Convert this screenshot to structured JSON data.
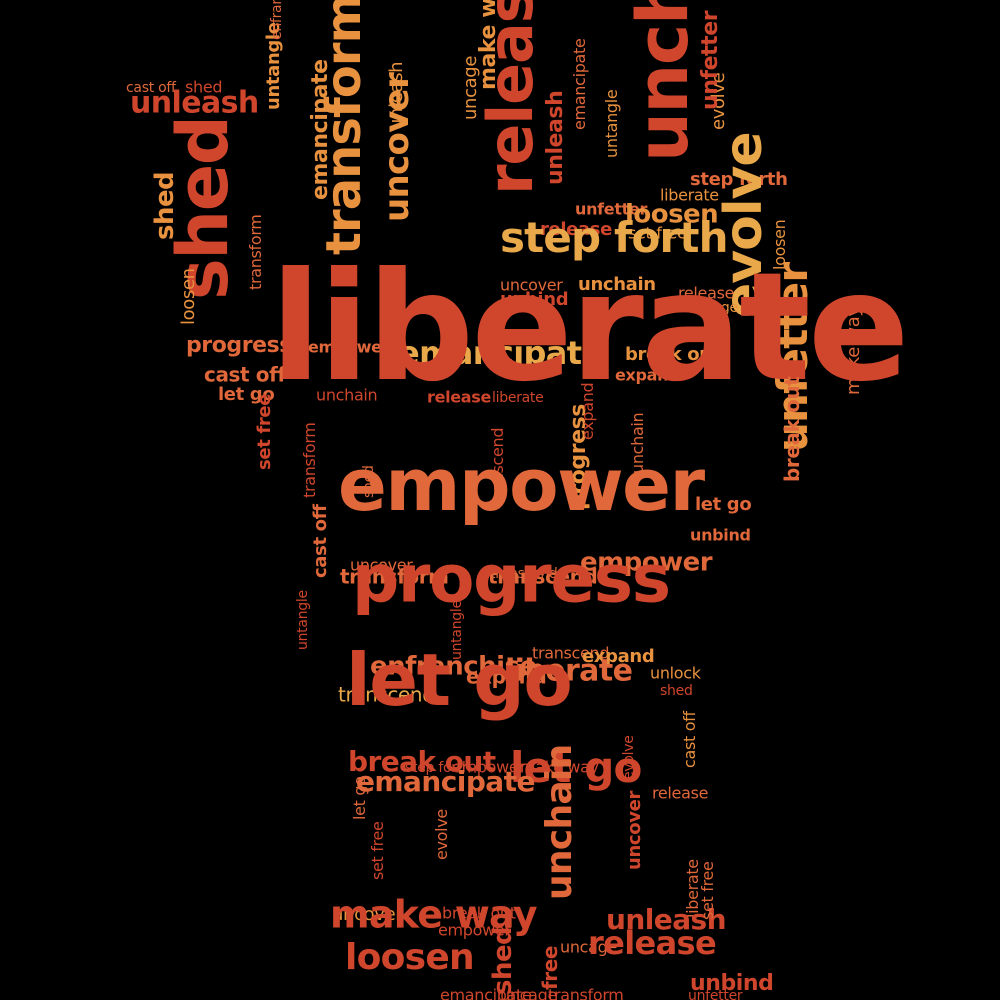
{
  "palette": {
    "background": "#000000",
    "red": "#d0462c",
    "orange": "#e0683a",
    "amber": "#e8923f",
    "gold": "#e9a94a"
  },
  "words": [
    {
      "text": "shed",
      "color": "red"
    },
    {
      "text": "unleash",
      "color": "red"
    },
    {
      "text": "cast off",
      "color": "orange"
    },
    {
      "text": "shed",
      "color": "red"
    },
    {
      "text": "shed",
      "color": "amber"
    },
    {
      "text": "loosen",
      "color": "amber"
    },
    {
      "text": "transform",
      "color": "orange"
    },
    {
      "text": "untangle",
      "color": "amber"
    },
    {
      "text": "enfranchise",
      "color": "orange"
    },
    {
      "text": "emancipate",
      "color": "amber"
    },
    {
      "text": "transform",
      "color": "amber"
    },
    {
      "text": "uncover",
      "color": "amber"
    },
    {
      "text": "unleash",
      "color": "amber"
    },
    {
      "text": "uncage",
      "color": "amber"
    },
    {
      "text": "make way",
      "color": "amber"
    },
    {
      "text": "release",
      "color": "red"
    },
    {
      "text": "unleash",
      "color": "red"
    },
    {
      "text": "emancipate",
      "color": "orange"
    },
    {
      "text": "unchain",
      "color": "red"
    },
    {
      "text": "untangle",
      "color": "amber"
    },
    {
      "text": "evolve",
      "color": "amber"
    },
    {
      "text": "unfetter",
      "color": "red"
    },
    {
      "text": "step forth",
      "color": "orange"
    },
    {
      "text": "liberate",
      "color": "amber"
    },
    {
      "text": "unfetter",
      "color": "orange"
    },
    {
      "text": "loosen",
      "color": "amber"
    },
    {
      "text": "release",
      "color": "red"
    },
    {
      "text": "set free",
      "color": "amber"
    },
    {
      "text": "step forth",
      "color": "gold"
    },
    {
      "text": "evolve",
      "color": "gold"
    },
    {
      "text": "unchain",
      "color": "amber"
    },
    {
      "text": "uncover",
      "color": "orange"
    },
    {
      "text": "unbind",
      "color": "red"
    },
    {
      "text": "release",
      "color": "orange"
    },
    {
      "text": "uncage",
      "color": "amber"
    },
    {
      "text": "loosen",
      "color": "amber"
    },
    {
      "text": "unfetter",
      "color": "amber"
    },
    {
      "text": "make way",
      "color": "orange"
    },
    {
      "text": "progress",
      "color": "orange"
    },
    {
      "text": "empower",
      "color": "orange"
    },
    {
      "text": "cast off",
      "color": "orange"
    },
    {
      "text": "let go",
      "color": "orange"
    },
    {
      "text": "break out",
      "color": "amber"
    },
    {
      "text": "emancipate",
      "color": "gold"
    },
    {
      "text": "expand",
      "color": "orange"
    },
    {
      "text": "liberate",
      "color": "red"
    },
    {
      "text": "unchain",
      "color": "red"
    },
    {
      "text": "transform",
      "color": "red"
    },
    {
      "text": "set free",
      "color": "red"
    },
    {
      "text": "release",
      "color": "red"
    },
    {
      "text": "liberate",
      "color": "red"
    },
    {
      "text": "transcend",
      "color": "red"
    },
    {
      "text": "progress",
      "color": "amber"
    },
    {
      "text": "break out",
      "color": "orange"
    },
    {
      "text": "unchain",
      "color": "orange"
    },
    {
      "text": "empower",
      "color": "orange"
    },
    {
      "text": "cast off",
      "color": "orange"
    },
    {
      "text": "shed",
      "color": "orange"
    },
    {
      "text": "let go",
      "color": "orange"
    },
    {
      "text": "unbind",
      "color": "orange"
    },
    {
      "text": "expand",
      "color": "red"
    },
    {
      "text": "uncover",
      "color": "orange"
    },
    {
      "text": "transcend",
      "color": "orange"
    },
    {
      "text": "empower",
      "color": "orange"
    },
    {
      "text": "transform",
      "color": "orange"
    },
    {
      "text": "transcend",
      "color": "orange"
    },
    {
      "text": "progress",
      "color": "red"
    },
    {
      "text": "untangle",
      "color": "red"
    },
    {
      "text": "untangle",
      "color": "red"
    },
    {
      "text": "transcend",
      "color": "orange"
    },
    {
      "text": "expand",
      "color": "amber"
    },
    {
      "text": "unlock",
      "color": "amber"
    },
    {
      "text": "shed",
      "color": "red"
    },
    {
      "text": "expand",
      "color": "orange"
    },
    {
      "text": "enfranchise",
      "color": "orange"
    },
    {
      "text": "liberate",
      "color": "orange"
    },
    {
      "text": "transcend",
      "color": "gold"
    },
    {
      "text": "let go",
      "color": "red"
    },
    {
      "text": "break out",
      "color": "red"
    },
    {
      "text": "step forth",
      "color": "red"
    },
    {
      "text": "empower",
      "color": "red"
    },
    {
      "text": "make way",
      "color": "red"
    },
    {
      "text": "evolve",
      "color": "red"
    },
    {
      "text": "cast off",
      "color": "amber"
    },
    {
      "text": "let go",
      "color": "red"
    },
    {
      "text": "release",
      "color": "orange"
    },
    {
      "text": "let go",
      "color": "orange"
    },
    {
      "text": "emancipate",
      "color": "orange"
    },
    {
      "text": "evolve",
      "color": "orange"
    },
    {
      "text": "unchain",
      "color": "orange"
    },
    {
      "text": "uncover",
      "color": "red"
    },
    {
      "text": "set free",
      "color": "red"
    },
    {
      "text": "uncover",
      "color": "amber"
    },
    {
      "text": "break out",
      "color": "red"
    },
    {
      "text": "make way",
      "color": "red"
    },
    {
      "text": "liberate",
      "color": "orange"
    },
    {
      "text": "unleash",
      "color": "red"
    },
    {
      "text": "set free",
      "color": "orange"
    },
    {
      "text": "empower",
      "color": "red"
    },
    {
      "text": "shed",
      "color": "red"
    },
    {
      "text": "uncage",
      "color": "orange"
    },
    {
      "text": "release",
      "color": "red"
    },
    {
      "text": "free",
      "color": "red"
    },
    {
      "text": "loosen",
      "color": "red"
    },
    {
      "text": "unbind",
      "color": "red"
    },
    {
      "text": "unfetter",
      "color": "red"
    },
    {
      "text": "uncage",
      "color": "red"
    },
    {
      "text": "transform",
      "color": "red"
    },
    {
      "text": "emancipate",
      "color": "red"
    }
  ]
}
